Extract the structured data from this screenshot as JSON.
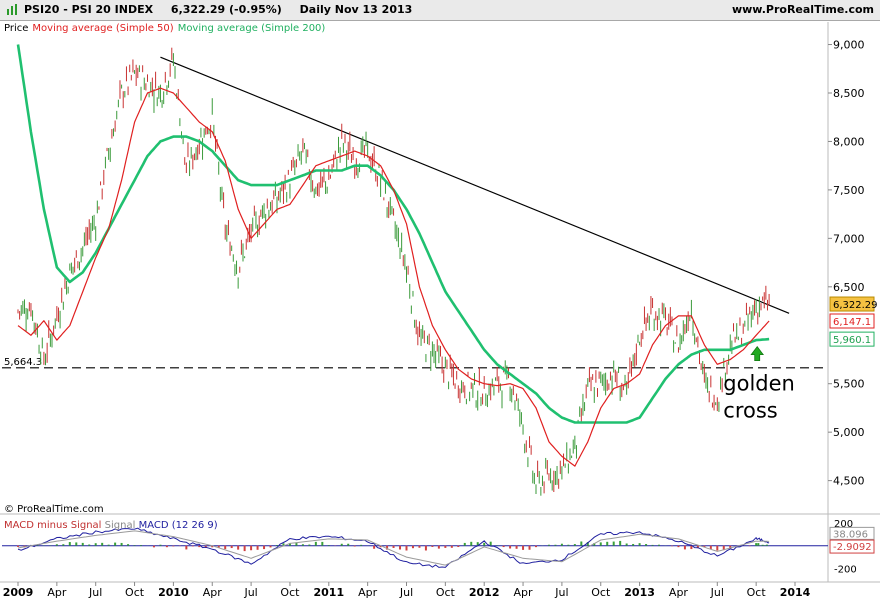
{
  "header": {
    "symbol": "PSI20 - PSI 20 INDEX",
    "quote": "6,322.29 (-0.95%)",
    "period": "Daily  Nov 13 2013",
    "site": "www.ProRealTime.com"
  },
  "legend": {
    "price": "Price",
    "ma50": "Moving average (Simple 50)",
    "ma200": "Moving average (Simple 200)"
  },
  "credit": "© ProRealTime.com",
  "macd_legend": {
    "part1": "MACD minus Signal",
    "part2": "Signal",
    "part3": "MACD (12 26 9)"
  },
  "colors": {
    "price_up": "#3a9a3a",
    "price_down": "#c83232",
    "ma50": "#e02020",
    "ma200": "#20c070",
    "trendline": "#000000",
    "macd": "#2020a0",
    "signal": "#9a9a9a",
    "arrow": "#22aa22"
  },
  "chart_data": [
    {
      "type": "line",
      "title": "PSI20 - PSI 20 INDEX",
      "x": [
        "2009-01",
        "2009-02",
        "2009-03",
        "2009-04",
        "2009-05",
        "2009-06",
        "2009-07",
        "2009-08",
        "2009-09",
        "2009-10",
        "2009-11",
        "2009-12",
        "2010-01",
        "2010-02",
        "2010-03",
        "2010-04",
        "2010-05",
        "2010-06",
        "2010-07",
        "2010-08",
        "2010-09",
        "2010-10",
        "2010-11",
        "2010-12",
        "2011-01",
        "2011-02",
        "2011-03",
        "2011-04",
        "2011-05",
        "2011-06",
        "2011-07",
        "2011-08",
        "2011-09",
        "2011-10",
        "2011-11",
        "2011-12",
        "2012-01",
        "2012-02",
        "2012-03",
        "2012-04",
        "2012-05",
        "2012-06",
        "2012-07",
        "2012-08",
        "2012-09",
        "2012-10",
        "2012-11",
        "2012-12",
        "2013-01",
        "2013-02",
        "2013-03",
        "2013-04",
        "2013-05",
        "2013-06",
        "2013-07",
        "2013-08",
        "2013-09",
        "2013-10",
        "2013-11"
      ],
      "series": [
        {
          "name": "Price",
          "values": [
            6250,
            6300,
            5750,
            6200,
            6650,
            6900,
            7200,
            7900,
            8500,
            8700,
            8600,
            8500,
            8850,
            7700,
            8000,
            8250,
            7100,
            6700,
            7050,
            7300,
            7400,
            7600,
            7900,
            7500,
            7600,
            8000,
            7800,
            7900,
            7600,
            7150,
            6700,
            5950,
            5850,
            5650,
            5500,
            5450,
            5400,
            5500,
            5550,
            5050,
            4450,
            4550,
            4600,
            4850,
            5450,
            5500,
            5600,
            5400,
            6000,
            6250,
            6150,
            5900,
            6300,
            5500,
            5350,
            5900,
            6050,
            6300,
            6322
          ]
        },
        {
          "name": "Moving average (Simple 50)",
          "values": [
            6100,
            6000,
            6150,
            5950,
            6100,
            6450,
            6800,
            7100,
            7600,
            8200,
            8500,
            8550,
            8500,
            8350,
            8200,
            8100,
            7800,
            7300,
            7000,
            7150,
            7300,
            7350,
            7550,
            7750,
            7800,
            7850,
            7900,
            7850,
            7750,
            7500,
            7150,
            6500,
            6100,
            5850,
            5650,
            5550,
            5500,
            5480,
            5500,
            5450,
            5250,
            4900,
            4750,
            4650,
            4900,
            5250,
            5450,
            5500,
            5600,
            5900,
            6100,
            6200,
            6200,
            5900,
            5700,
            5750,
            5850,
            6000,
            6147
          ]
        },
        {
          "name": "Moving average (Simple 200)",
          "values": [
            9000,
            8100,
            7300,
            6700,
            6550,
            6650,
            6850,
            7100,
            7350,
            7600,
            7850,
            8000,
            8050,
            8050,
            8000,
            7900,
            7750,
            7600,
            7550,
            7550,
            7550,
            7600,
            7650,
            7700,
            7700,
            7700,
            7750,
            7750,
            7650,
            7500,
            7300,
            7050,
            6750,
            6450,
            6250,
            6050,
            5850,
            5700,
            5600,
            5500,
            5400,
            5250,
            5150,
            5100,
            5100,
            5100,
            5100,
            5100,
            5150,
            5350,
            5550,
            5700,
            5800,
            5850,
            5850,
            5850,
            5900,
            5950,
            5960
          ]
        }
      ],
      "ylim": [
        4300,
        9150
      ],
      "yticks": [
        "9,000",
        "8,500",
        "8,000",
        "7,500",
        "7,000",
        "6,500",
        "5,500",
        "5,000",
        "4,500"
      ],
      "ytick_values": [
        9000,
        8500,
        8000,
        7500,
        7000,
        6500,
        5500,
        5000,
        4500
      ],
      "xtick_labels": [
        {
          "label": "2009",
          "x": "2009-01",
          "bold": true
        },
        {
          "label": "Apr",
          "x": "2009-04"
        },
        {
          "label": "Jul",
          "x": "2009-07"
        },
        {
          "label": "Oct",
          "x": "2009-10"
        },
        {
          "label": "2010",
          "x": "2010-01",
          "bold": true
        },
        {
          "label": "Apr",
          "x": "2010-04"
        },
        {
          "label": "Jul",
          "x": "2010-07"
        },
        {
          "label": "Oct",
          "x": "2010-10"
        },
        {
          "label": "2011",
          "x": "2011-01",
          "bold": true
        },
        {
          "label": "Apr",
          "x": "2011-04"
        },
        {
          "label": "Jul",
          "x": "2011-07"
        },
        {
          "label": "Oct",
          "x": "2011-10"
        },
        {
          "label": "2012",
          "x": "2012-01",
          "bold": true
        },
        {
          "label": "Apr",
          "x": "2012-04"
        },
        {
          "label": "Jul",
          "x": "2012-07"
        },
        {
          "label": "Oct",
          "x": "2012-10"
        },
        {
          "label": "2013",
          "x": "2013-01",
          "bold": true
        },
        {
          "label": "Apr",
          "x": "2013-04"
        },
        {
          "label": "Jul",
          "x": "2013-07"
        },
        {
          "label": "Oct",
          "x": "2013-10"
        },
        {
          "label": "2014",
          "x": "2014-01",
          "bold": true
        }
      ],
      "trendline": {
        "from": {
          "x": "2009-12",
          "y": 8870
        },
        "to": {
          "x": "2013-11",
          "y": 6330
        }
      },
      "support_line": {
        "y": 5664.3,
        "label": "5,664.3",
        "style": "dashed"
      },
      "value_badges": [
        {
          "label": "6,322.29",
          "series": "Price",
          "y": 6322.29
        },
        {
          "label": "6,147.1",
          "series": "Moving average (Simple 50)",
          "y": 6147.1
        },
        {
          "label": "5,960.1",
          "series": "Moving average (Simple 200)",
          "y": 5960.1
        }
      ],
      "annotations": [
        {
          "text": "golden",
          "x": "2013-07",
          "y": 5430
        },
        {
          "text": "cross",
          "x": "2013-07",
          "y": 5150
        },
        {
          "type": "arrow-up",
          "x": "2013-09",
          "y": 5800
        }
      ],
      "grid": false
    },
    {
      "type": "line",
      "title": "MACD (12 26 9)",
      "x": [
        "2009-01",
        "2009-04",
        "2009-07",
        "2009-10",
        "2010-01",
        "2010-04",
        "2010-07",
        "2010-10",
        "2011-01",
        "2011-04",
        "2011-07",
        "2011-10",
        "2012-01",
        "2012-04",
        "2012-07",
        "2012-10",
        "2013-01",
        "2013-04",
        "2013-07",
        "2013-10",
        "2013-11"
      ],
      "series": [
        {
          "name": "MACD",
          "values": [
            -40,
            60,
            120,
            150,
            60,
            -30,
            -160,
            60,
            80,
            40,
            -150,
            -190,
            40,
            -160,
            -120,
            100,
            120,
            40,
            -90,
            60,
            35
          ]
        },
        {
          "name": "Signal",
          "values": [
            -20,
            40,
            90,
            130,
            80,
            0,
            -110,
            20,
            60,
            50,
            -100,
            -170,
            -10,
            -110,
            -140,
            50,
            100,
            60,
            -50,
            40,
            38
          ]
        }
      ],
      "ylim": [
        -300,
        260
      ],
      "yticks": [
        "200",
        "-200"
      ],
      "ytick_values": [
        200,
        -200
      ],
      "value_badges": [
        {
          "label": "38.096",
          "series": "Signal"
        },
        {
          "label": "-2.9092",
          "series": "MACD minus Signal"
        }
      ]
    }
  ]
}
